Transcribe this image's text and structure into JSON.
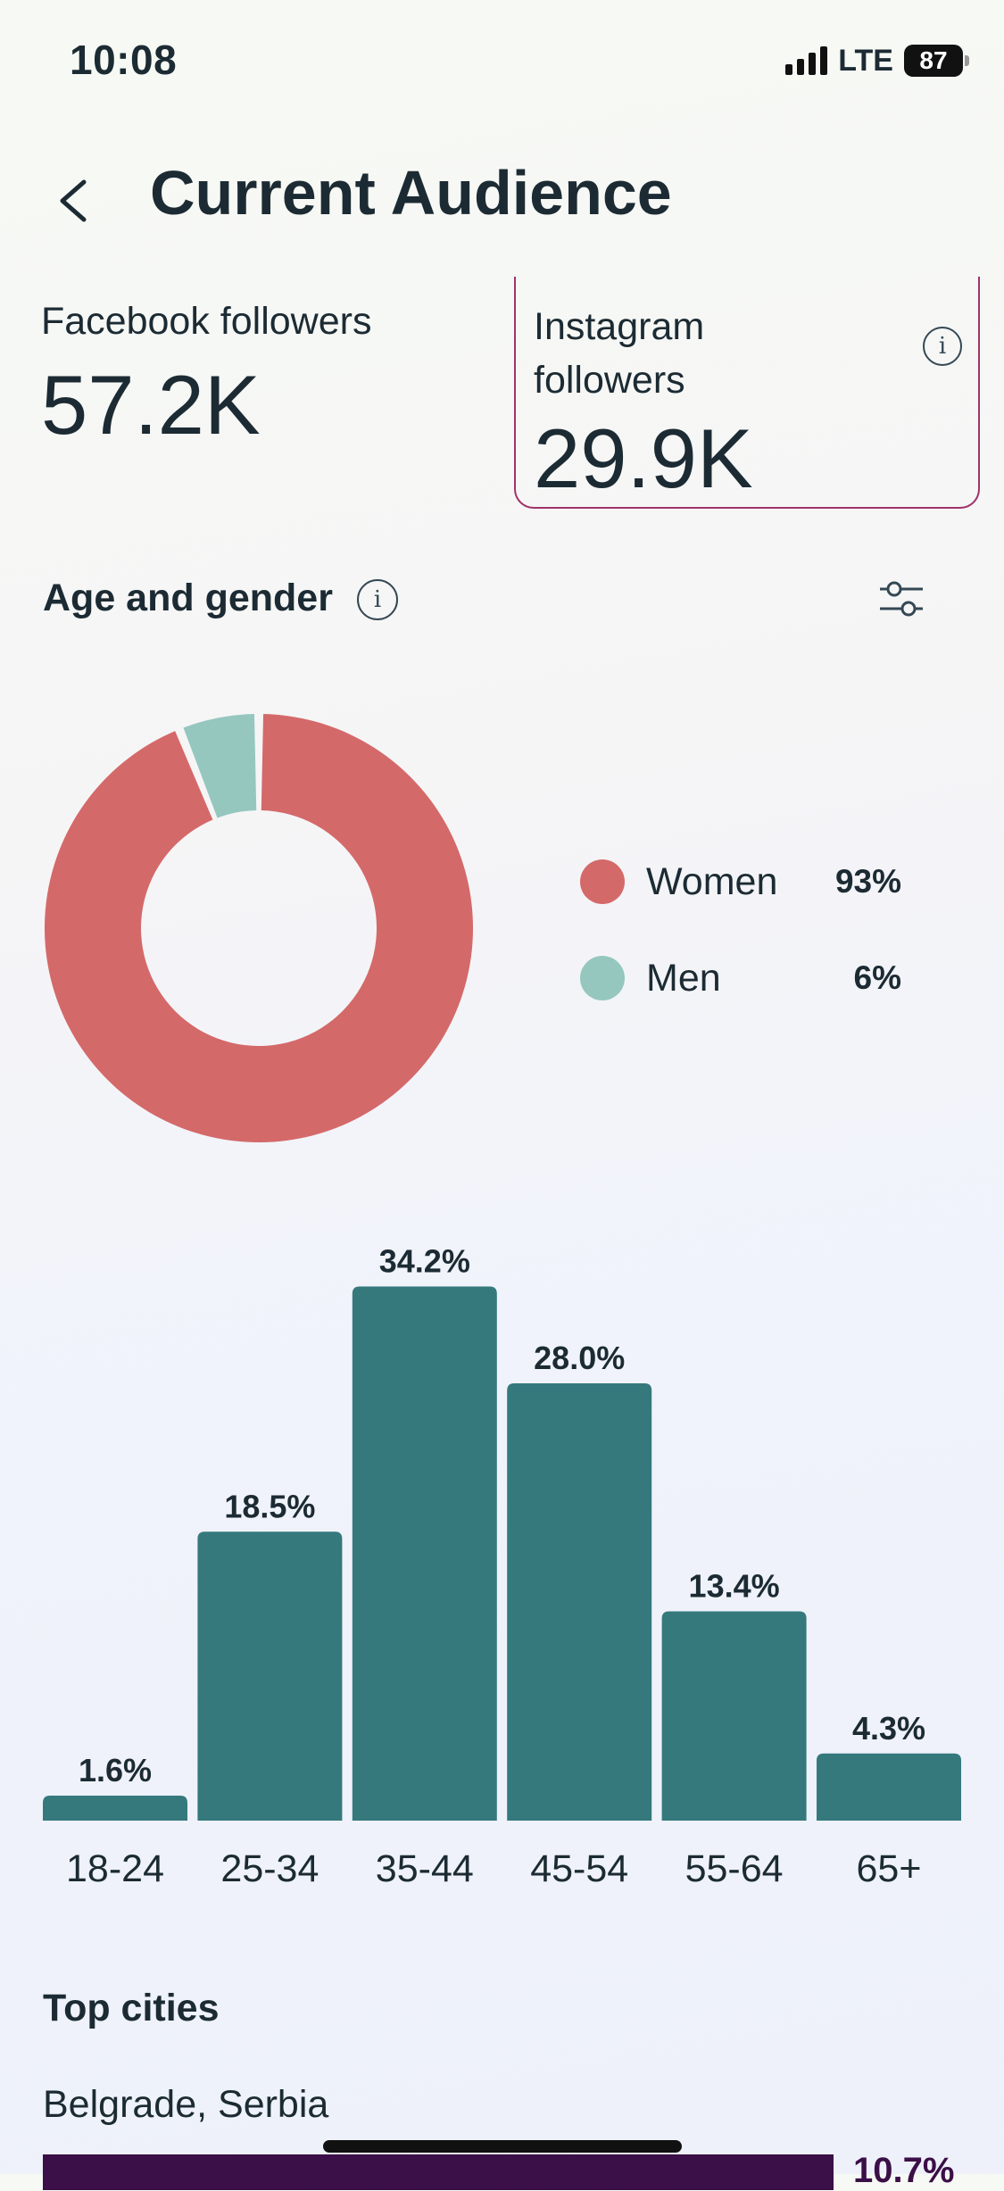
{
  "status_bar": {
    "time": "10:08",
    "network": "LTE",
    "battery": "87"
  },
  "header": {
    "title": "Current Audience",
    "back_icon": "chevron-left-icon"
  },
  "followers": {
    "facebook": {
      "label": "Facebook followers",
      "value": "57.2K"
    },
    "instagram": {
      "label": "Instagram followers",
      "value": "29.9K",
      "info_icon": "info-icon"
    }
  },
  "age_gender": {
    "title": "Age and gender",
    "info_icon": "info-icon",
    "filter_icon": "sliders-icon"
  },
  "colors": {
    "women": "#d4696a",
    "men": "#95c7bf",
    "bars": "#35797d",
    "ig_border": "#a0336a",
    "city_bar": "#3b0f47"
  },
  "chart_data": [
    {
      "type": "pie",
      "style": "donut",
      "labels": [
        "Women",
        "Men"
      ],
      "values": [
        93,
        6
      ],
      "display": [
        "93%",
        "6%"
      ]
    },
    {
      "type": "bar",
      "categories": [
        "18-24",
        "25-34",
        "35-44",
        "45-54",
        "55-64",
        "65+"
      ],
      "values": [
        1.6,
        18.5,
        34.2,
        28.0,
        13.4,
        4.3
      ],
      "data_labels": [
        "1.6%",
        "18.5%",
        "34.2%",
        "28.0%",
        "13.4%",
        "4.3%"
      ]
    }
  ],
  "top_cities": {
    "title": "Top cities",
    "items": [
      {
        "name": "Belgrade, Serbia",
        "value": 10.7,
        "label": "10.7%"
      }
    ]
  }
}
